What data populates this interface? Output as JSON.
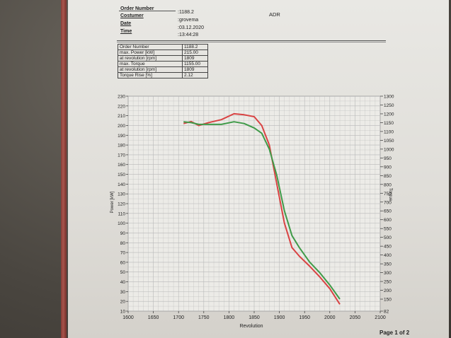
{
  "header": {
    "rows": [
      {
        "label": "Order Number",
        "value": ":1188.2"
      },
      {
        "label": "Costumer",
        "value": ":grovema"
      },
      {
        "label": "Date",
        "value": ":03.12.2020"
      },
      {
        "label": "Time",
        "value": ":13:44:28"
      }
    ],
    "tag": "ADR"
  },
  "specs": [
    {
      "label": "Order Number",
      "value": "1188.2"
    },
    {
      "label": "max. Power [kW]",
      "value": "215.00"
    },
    {
      "label": "at revolution [rpm]",
      "value": "1809"
    },
    {
      "label": "max. Torque",
      "value": "1155.00"
    },
    {
      "label": "at revolution [rpm]",
      "value": "1809"
    },
    {
      "label": "Torque Rise [%]",
      "value": "2.12"
    }
  ],
  "footer": {
    "page": "Page 1 of 2"
  },
  "colors": {
    "power": "#d94343",
    "torque": "#3f9a48",
    "grid": "#b8b8b8"
  },
  "chart_data": {
    "type": "line",
    "xlabel": "Revolution",
    "ylabel": "Power [kW]",
    "y2label": "Torque",
    "xlim": [
      1600,
      2100
    ],
    "ylim": [
      10,
      230
    ],
    "y2lim": [
      82,
      1300
    ],
    "x_ticks": [
      1600,
      1650,
      1700,
      1750,
      1800,
      1850,
      1900,
      1950,
      2000,
      2050,
      2100
    ],
    "y_ticks": [
      10,
      20,
      30,
      40,
      50,
      60,
      70,
      80,
      90,
      100,
      110,
      120,
      130,
      140,
      150,
      160,
      170,
      180,
      190,
      200,
      210,
      220,
      230
    ],
    "y2_ticks": [
      82,
      150,
      200,
      250,
      300,
      350,
      400,
      450,
      500,
      550,
      600,
      650,
      700,
      750,
      800,
      850,
      900,
      950,
      1000,
      1050,
      1100,
      1150,
      1200,
      1250,
      1300
    ],
    "grid": true,
    "series": [
      {
        "name": "Power",
        "axis": "left",
        "color": "#d94343",
        "x": [
          1710,
          1725,
          1740,
          1760,
          1785,
          1810,
          1830,
          1850,
          1865,
          1880,
          1895,
          1910,
          1925,
          1940,
          1960,
          1980,
          2000,
          2020
        ],
        "y": [
          202,
          204,
          200,
          203,
          206,
          212,
          211,
          209,
          200,
          180,
          140,
          100,
          75,
          66,
          56,
          45,
          33,
          17
        ]
      },
      {
        "name": "Torque",
        "axis": "right",
        "color": "#3f9a48",
        "x": [
          1710,
          1725,
          1740,
          1760,
          1785,
          1810,
          1830,
          1850,
          1865,
          1880,
          1895,
          1910,
          1925,
          1940,
          1960,
          1980,
          2000,
          2020
        ],
        "y": [
          1155,
          1150,
          1140,
          1140,
          1140,
          1155,
          1145,
          1120,
          1090,
          1000,
          850,
          650,
          510,
          440,
          360,
          300,
          230,
          150
        ]
      }
    ]
  }
}
